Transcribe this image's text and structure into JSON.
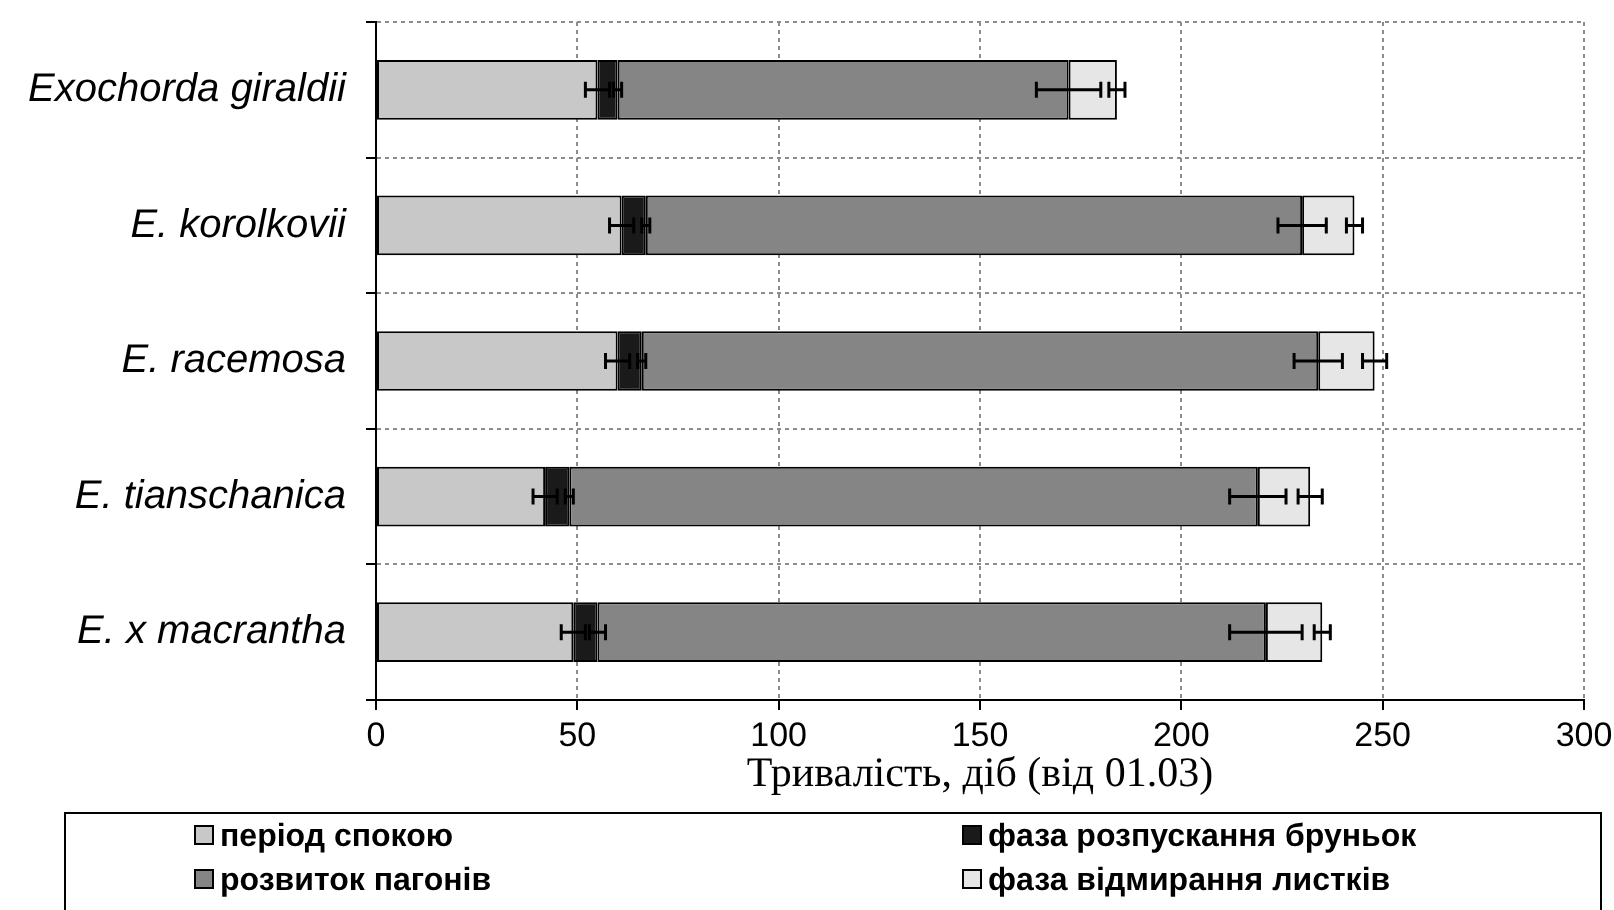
{
  "chart_data": {
    "type": "bar",
    "orientation": "horizontal",
    "stacked": true,
    "categories": [
      "Exochorda giraldii",
      "E. korolkovii",
      "E. racemosa",
      "E. tianschanica",
      "E. x macrantha"
    ],
    "series": [
      {
        "name": "період спокою",
        "color": "#c8c8c8",
        "values": [
          55,
          61,
          60,
          42,
          49
        ],
        "errors": [
          3,
          3,
          3,
          3,
          3
        ]
      },
      {
        "name": "фаза розпускання бруньок",
        "color": "#1a1a1a",
        "values": [
          5,
          6,
          6,
          6,
          6
        ],
        "errors": [
          1,
          1,
          1,
          1,
          2
        ]
      },
      {
        "name": "розвиток пагонів",
        "color": "#858585",
        "values": [
          112,
          163,
          168,
          171,
          166
        ],
        "errors": [
          8,
          6,
          6,
          7,
          9
        ]
      },
      {
        "name": "фаза відмирання листків",
        "color": "#e6e6e6",
        "values": [
          12,
          13,
          14,
          13,
          14
        ],
        "errors": [
          2,
          2,
          3,
          3,
          2
        ]
      }
    ],
    "xlabel": "Тривалість, діб (від 01.03)",
    "xlim": [
      0,
      300
    ],
    "xticks": [
      0,
      50,
      100,
      150,
      200,
      250,
      300
    ],
    "grid": true,
    "legend": "bottom"
  }
}
